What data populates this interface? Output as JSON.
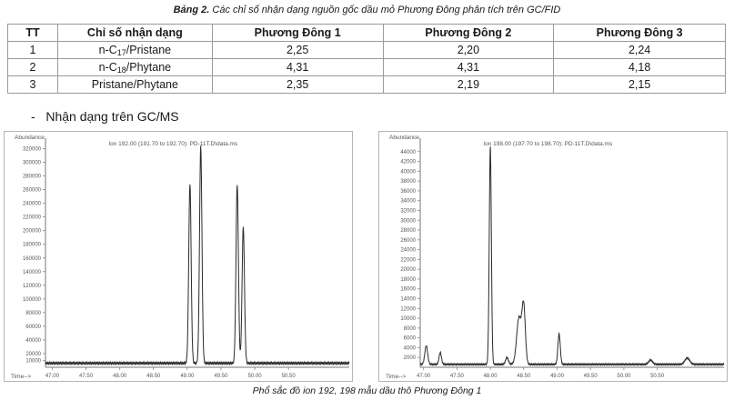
{
  "table_caption": {
    "label": "Bảng 2.",
    "text": " Các chỉ số nhận dạng nguồn gốc dầu mỏ Phương Đông phân tích trên GC/FID"
  },
  "table": {
    "headers": [
      "TT",
      "Chỉ số nhận dạng",
      "Phương Đông 1",
      "Phương Đông 2",
      "Phương Đông 3"
    ],
    "rows": [
      {
        "tt": "1",
        "index": {
          "pre": "n-C",
          "sub": "17",
          "post": "/Pristane"
        },
        "v1": "2,25",
        "v2": "2,20",
        "v3": "2,24"
      },
      {
        "tt": "2",
        "index": {
          "pre": "n-C",
          "sub": "18",
          "post": "/Phytane"
        },
        "v1": "4,31",
        "v2": "4,31",
        "v3": "4,18"
      },
      {
        "tt": "3",
        "index": {
          "pre": "Pristane/Phytane",
          "sub": "",
          "post": ""
        },
        "v1": "2,35",
        "v2": "2,19",
        "v3": "2,15"
      }
    ]
  },
  "section_heading": "-   Nhận dạng trên GC/MS",
  "figure_caption": "Phổ sắc đồ ion 192, 198 mẫu dầu thô Phương Đông 1",
  "chart_data": [
    {
      "type": "line",
      "title": "Ion 192.00 (191.70 to 192.70): PD-11T.D\\data.ms",
      "ylabel": "Abundance",
      "xlabel": "Time-->",
      "xlim": [
        46.9,
        51.4
      ],
      "ylim": [
        0,
        330000
      ],
      "xticks": [
        "47.00",
        "47.50",
        "48.00",
        "48.50",
        "49.00",
        "49.50",
        "50.00",
        "50.50"
      ],
      "xtick_values": [
        47.0,
        47.5,
        48.0,
        48.5,
        49.0,
        49.5,
        50.0,
        50.5
      ],
      "yticks": [
        "10000",
        "20000",
        "40000",
        "60000",
        "80000",
        "100000",
        "120000",
        "140000",
        "160000",
        "180000",
        "200000",
        "220000",
        "240000",
        "260000",
        "280000",
        "300000",
        "320000"
      ],
      "ytick_values": [
        10000,
        20000,
        40000,
        60000,
        80000,
        100000,
        120000,
        140000,
        160000,
        180000,
        200000,
        220000,
        240000,
        260000,
        280000,
        300000,
        320000
      ],
      "baseline": 6000,
      "peaks": [
        {
          "x": 49.04,
          "y": 263000,
          "w": 0.025
        },
        {
          "x": 49.2,
          "y": 318000,
          "w": 0.025
        },
        {
          "x": 49.74,
          "y": 262000,
          "w": 0.025
        },
        {
          "x": 49.83,
          "y": 200000,
          "w": 0.025
        }
      ]
    },
    {
      "type": "line",
      "title": "Ion 198.00 (197.70 to 198.70): PD-11T.D\\data.ms",
      "ylabel": "Abundance",
      "xlabel": "Time-->",
      "xlim": [
        46.95,
        51.5
      ],
      "ylim": [
        0,
        46000
      ],
      "xticks": [
        "47.00",
        "47.50",
        "48.00",
        "48.50",
        "49.00",
        "49.50",
        "50.00",
        "50.50"
      ],
      "xtick_values": [
        47.0,
        47.5,
        48.0,
        48.5,
        49.0,
        49.5,
        50.0,
        50.5
      ],
      "yticks": [
        "2000",
        "4000",
        "6000",
        "8000",
        "10000",
        "12000",
        "14000",
        "16000",
        "18000",
        "20000",
        "22000",
        "24000",
        "26000",
        "28000",
        "30000",
        "32000",
        "34000",
        "36000",
        "38000",
        "40000",
        "42000",
        "44000"
      ],
      "ytick_values": [
        2000,
        4000,
        6000,
        8000,
        10000,
        12000,
        14000,
        16000,
        18000,
        20000,
        22000,
        24000,
        26000,
        28000,
        30000,
        32000,
        34000,
        36000,
        38000,
        40000,
        42000,
        44000
      ],
      "baseline": 600,
      "peaks": [
        {
          "x": 47.04,
          "y": 3800,
          "w": 0.03
        },
        {
          "x": 47.25,
          "y": 2400,
          "w": 0.025
        },
        {
          "x": 48.0,
          "y": 44500,
          "w": 0.022
        },
        {
          "x": 48.43,
          "y": 9500,
          "w": 0.05
        },
        {
          "x": 48.5,
          "y": 11500,
          "w": 0.035
        },
        {
          "x": 49.03,
          "y": 6200,
          "w": 0.025
        },
        {
          "x": 48.25,
          "y": 1400,
          "w": 0.03
        },
        {
          "x": 50.4,
          "y": 900,
          "w": 0.04
        },
        {
          "x": 50.95,
          "y": 1300,
          "w": 0.05
        }
      ]
    }
  ]
}
